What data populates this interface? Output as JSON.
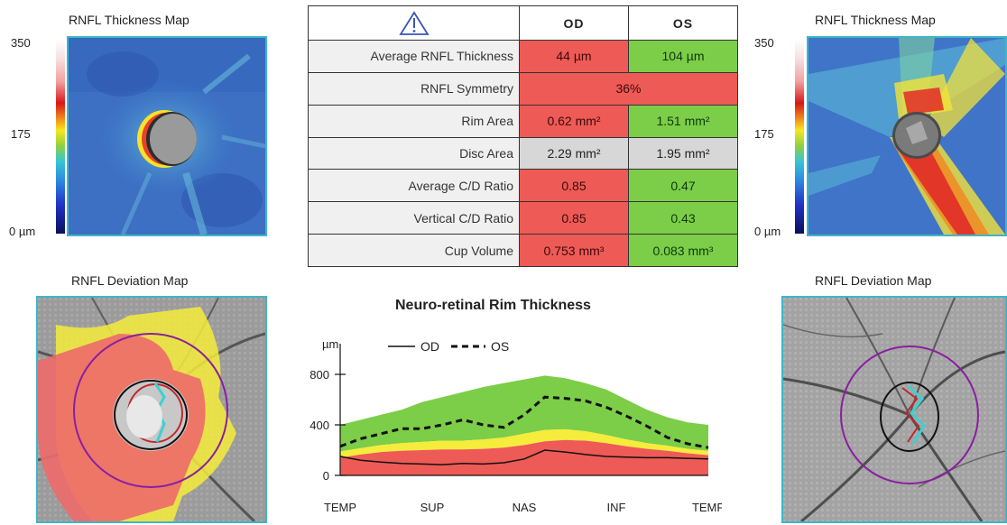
{
  "left_od": {
    "thickness_title": "RNFL Thickness Map",
    "scale_max": "350",
    "scale_mid": "175",
    "scale_min": "0 µm",
    "deviation_title": "RNFL Deviation Map"
  },
  "right_os": {
    "thickness_title": "RNFL Thickness Map",
    "scale_max": "350",
    "scale_mid": "175",
    "scale_min": "0 µm",
    "deviation_title": "RNFL Deviation Map"
  },
  "table": {
    "header": {
      "warning_icon": "warning-triangle-icon",
      "col_od": "OD",
      "col_os": "OS"
    },
    "rows": [
      {
        "label": "Average RNFL Thickness",
        "od": "44 µm",
        "os": "104 µm",
        "od_status": "red",
        "os_status": "green"
      },
      {
        "label": "RNFL Symmetry",
        "combined": "36%",
        "status": "red"
      },
      {
        "label": "Rim Area",
        "od": "0.62 mm²",
        "os": "1.51 mm²",
        "od_status": "red",
        "os_status": "green"
      },
      {
        "label": "Disc Area",
        "od": "2.29 mm²",
        "os": "1.95 mm²",
        "od_status": "gray",
        "os_status": "gray"
      },
      {
        "label": "Average C/D Ratio",
        "od": "0.85",
        "os": "0.47",
        "od_status": "red",
        "os_status": "green"
      },
      {
        "label": "Vertical C/D Ratio",
        "od": "0.85",
        "os": "0.43",
        "od_status": "red",
        "os_status": "green"
      },
      {
        "label": "Cup Volume",
        "od": "0.753 mm³",
        "os": "0.083 mm³",
        "od_status": "red",
        "os_status": "green"
      }
    ]
  },
  "colors": {
    "red": "#ee5a55",
    "green": "#7ccd48",
    "yellow": "#f5ec3b",
    "gray": "#d7d7d7",
    "frame": "#3fb6c8",
    "ring": "#8a1fa0"
  },
  "chart_data": {
    "type": "line",
    "title": "Neuro-retinal Rim Thickness",
    "ylabel": "µm",
    "ylim": [
      0,
      900
    ],
    "yticks": [
      0,
      400,
      800
    ],
    "x_tick_labels": [
      "TEMP",
      "SUP",
      "NAS",
      "INF",
      "TEMP"
    ],
    "x_tick_positions": [
      0,
      90,
      180,
      270,
      360
    ],
    "xlim": [
      0,
      360
    ],
    "legend": [
      {
        "name": "OD",
        "style": "solid"
      },
      {
        "name": "OS",
        "style": "dashed"
      }
    ],
    "x": [
      0,
      20,
      40,
      60,
      80,
      100,
      120,
      140,
      160,
      180,
      200,
      220,
      240,
      260,
      280,
      300,
      320,
      340,
      360
    ],
    "bands": {
      "red_upper": [
        140,
        165,
        185,
        195,
        200,
        205,
        205,
        210,
        220,
        240,
        270,
        280,
        275,
        255,
        230,
        210,
        195,
        175,
        160
      ],
      "yellow_upper": [
        190,
        215,
        240,
        255,
        265,
        275,
        275,
        285,
        300,
        330,
        360,
        365,
        350,
        320,
        285,
        255,
        235,
        210,
        195
      ],
      "green_upper": [
        400,
        440,
        480,
        520,
        580,
        620,
        660,
        700,
        730,
        760,
        790,
        770,
        730,
        680,
        600,
        520,
        460,
        420,
        400
      ]
    },
    "series": [
      {
        "name": "OD",
        "values": [
          150,
          120,
          105,
          95,
          90,
          85,
          95,
          90,
          100,
          130,
          200,
          185,
          165,
          150,
          145,
          140,
          140,
          135,
          130
        ]
      },
      {
        "name": "OS",
        "values": [
          230,
          290,
          330,
          370,
          370,
          400,
          440,
          400,
          380,
          480,
          620,
          610,
          590,
          540,
          470,
          390,
          300,
          250,
          220
        ]
      }
    ]
  }
}
